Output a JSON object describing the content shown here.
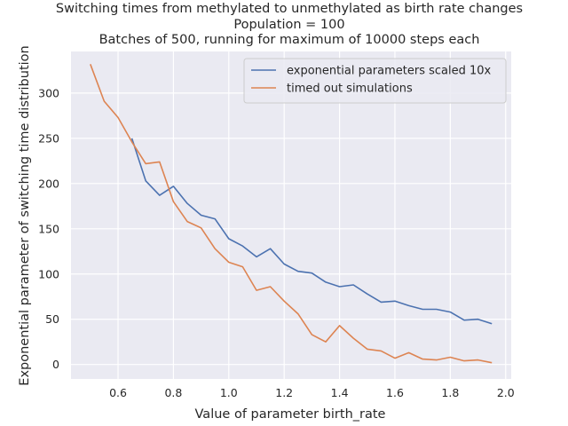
{
  "chart_data": {
    "type": "line",
    "title_lines": [
      "Switching times from methylated to unmethylated as birth rate changes",
      "Population = 100",
      "Batches of 500, running for maximum of 10000 steps each"
    ],
    "xlabel": "Value of parameter birth_rate",
    "ylabel": "Exponential parameter of switching time distribution",
    "xlim": [
      0.43,
      2.02
    ],
    "ylim": [
      -16,
      346
    ],
    "xticks": [
      0.6,
      0.8,
      1.0,
      1.2,
      1.4,
      1.6,
      1.8,
      2.0
    ],
    "xtick_labels": [
      "0.6",
      "0.8",
      "1.0",
      "1.2",
      "1.4",
      "1.6",
      "1.8",
      "2.0"
    ],
    "yticks": [
      0,
      50,
      100,
      150,
      200,
      250,
      300
    ],
    "ytick_labels": [
      "0",
      "50",
      "100",
      "150",
      "200",
      "250",
      "300"
    ],
    "grid": true,
    "background": "#eaeaf2",
    "legend_position": "top-right",
    "series": [
      {
        "name": "exponential parameters scaled 10x",
        "color": "#4c72b0",
        "x": [
          0.65,
          0.7,
          0.75,
          0.8,
          0.85,
          0.9,
          0.95,
          1.0,
          1.05,
          1.1,
          1.15,
          1.2,
          1.25,
          1.3,
          1.35,
          1.4,
          1.45,
          1.5,
          1.55,
          1.6,
          1.65,
          1.7,
          1.75,
          1.8,
          1.85,
          1.9,
          1.95
        ],
        "y": [
          250,
          203,
          187,
          197,
          178,
          165,
          161,
          139,
          131,
          119,
          128,
          111,
          103,
          101,
          91,
          86,
          88,
          78,
          69,
          70,
          65,
          61,
          61,
          58,
          49,
          50,
          45
        ]
      },
      {
        "name": "timed out simulations",
        "color": "#dd8452",
        "x": [
          0.5,
          0.55,
          0.6,
          0.65,
          0.7,
          0.75,
          0.8,
          0.85,
          0.9,
          0.95,
          1.0,
          1.05,
          1.1,
          1.15,
          1.2,
          1.25,
          1.3,
          1.35,
          1.4,
          1.45,
          1.5,
          1.55,
          1.6,
          1.65,
          1.7,
          1.75,
          1.8,
          1.85,
          1.9,
          1.95
        ],
        "y": [
          332,
          291,
          273,
          246,
          222,
          224,
          180,
          158,
          151,
          128,
          113,
          108,
          82,
          86,
          70,
          56,
          33,
          25,
          43,
          29,
          17,
          15,
          7,
          13,
          6,
          5,
          8,
          4,
          5,
          2
        ]
      }
    ]
  }
}
